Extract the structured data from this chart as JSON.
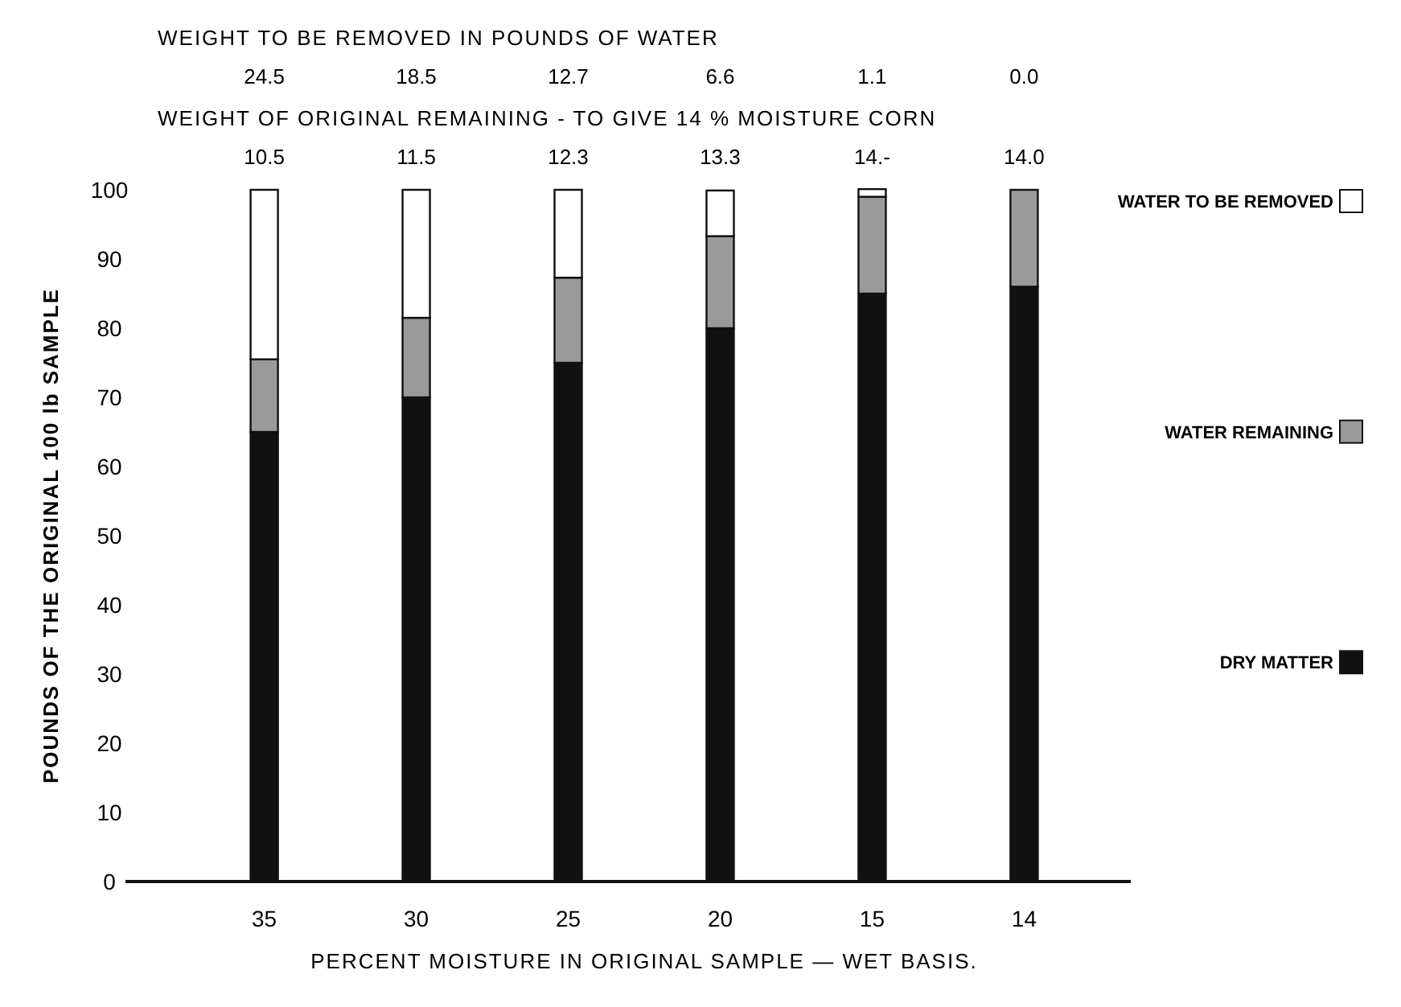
{
  "chart_data": {
    "type": "bar",
    "stacked": true,
    "xlabel": "PERCENT MOISTURE IN ORIGINAL SAMPLE — WET BASIS.",
    "ylabel": "POUNDS OF THE ORIGINAL 100 lb SAMPLE",
    "categories": [
      "35",
      "30",
      "25",
      "20",
      "15",
      "14"
    ],
    "series": [
      {
        "name": "DRY MATTER",
        "color": "#111111",
        "values": [
          65,
          70,
          75,
          80,
          85,
          86
        ]
      },
      {
        "name": "WATER REMAINING",
        "color": "#9a9a9a",
        "values": [
          10.5,
          11.5,
          12.3,
          13.3,
          14,
          14.0
        ]
      },
      {
        "name": "WATER TO BE REMOVED",
        "color": "#ffffff",
        "values": [
          24.5,
          18.5,
          12.7,
          6.6,
          1.1,
          0.0
        ],
        "value_labels": [
          "24.5",
          "18.5",
          "12.7",
          "6.6",
          "1.1",
          "0.0"
        ]
      }
    ],
    "annotations": [
      "WEIGHT TO BE REMOVED IN POUNDS OF WATER",
      "WEIGHT OF ORIGINAL REMAINING - TO GIVE 14 % MOISTURE CORN",
      "10.5",
      "11.5",
      "12.3",
      "13.3",
      "14.-",
      "14.0"
    ],
    "ylim": [
      0,
      100
    ],
    "yticks": [
      0,
      10,
      20,
      30,
      40,
      50,
      60,
      70,
      80,
      90,
      100
    ],
    "legend": "right",
    "grid": false
  }
}
